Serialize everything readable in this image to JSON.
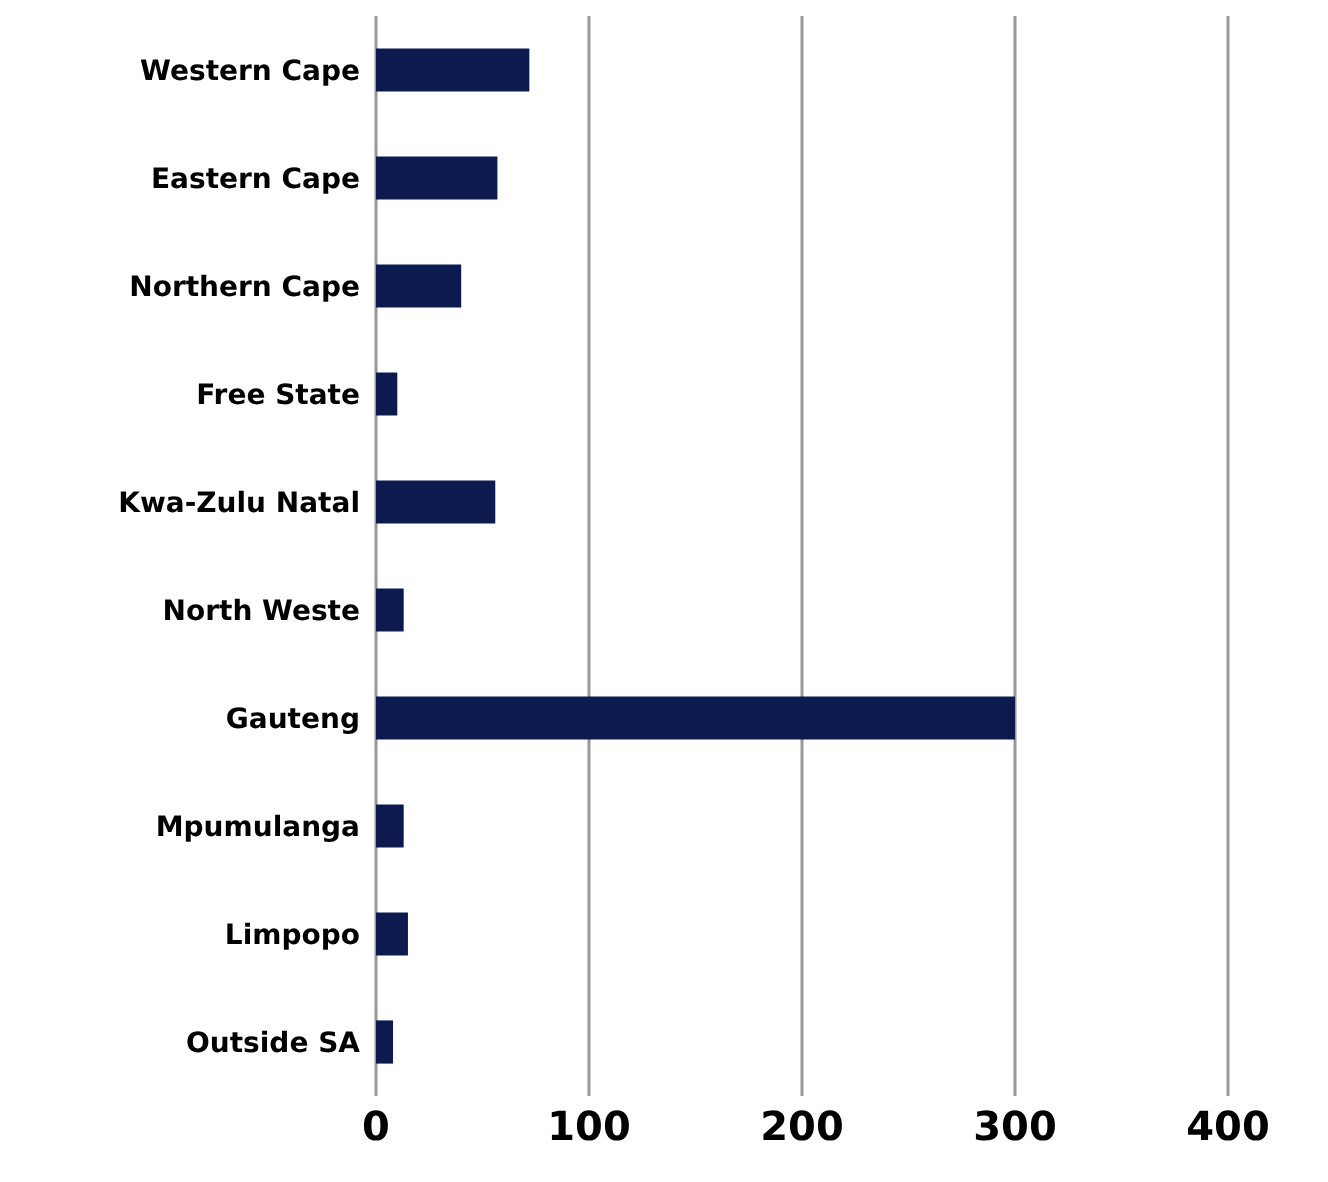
{
  "chart_data": {
    "type": "bar",
    "orientation": "horizontal",
    "categories": [
      "Western Cape",
      "Eastern Cape",
      "Northern Cape",
      "Free State",
      "Kwa-Zulu Natal",
      "North Weste",
      "Gauteng",
      "Mpumulanga",
      "Limpopo",
      "Outside SA"
    ],
    "values": [
      72,
      57,
      40,
      10,
      56,
      13,
      300,
      13,
      15,
      8
    ],
    "color": "#0d1a4f",
    "xlim": [
      0,
      400
    ],
    "xticks": [
      0,
      100,
      200,
      300,
      400
    ],
    "grid": "x",
    "legend": false
  }
}
